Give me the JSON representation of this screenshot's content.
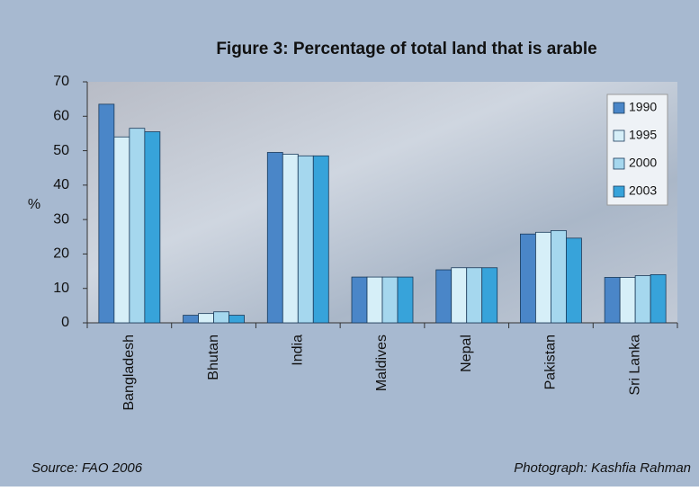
{
  "chart_data": {
    "type": "bar",
    "title": "Figure 3: Percentage of total land that is arable",
    "y_label": "%",
    "categories": [
      "Bangladesh",
      "Bhutan",
      "India",
      "Maldives",
      "Nepal",
      "Pakistan",
      "Sri Lanka"
    ],
    "series": [
      {
        "name": "1990",
        "color": "#4a86c8",
        "values": [
          63.5,
          2.2,
          49.5,
          13.3,
          15.4,
          25.8,
          13.2
        ]
      },
      {
        "name": "1995",
        "color": "#d6eff8",
        "values": [
          54,
          2.7,
          49,
          13.3,
          16,
          26.3,
          13.2
        ]
      },
      {
        "name": "2000",
        "color": "#a5d7ee",
        "values": [
          56.5,
          3.2,
          48.5,
          13.3,
          16,
          26.8,
          13.7
        ]
      },
      {
        "name": "2003",
        "color": "#37a3da",
        "values": [
          55.5,
          2.2,
          48.5,
          13.3,
          16,
          24.6,
          14
        ]
      }
    ],
    "ylim": [
      0,
      70
    ],
    "yticks": [
      0,
      10,
      20,
      30,
      40,
      50,
      60,
      70
    ],
    "source": "Source: FAO 2006",
    "credit": "Photograph: Kashfia Rahman"
  }
}
